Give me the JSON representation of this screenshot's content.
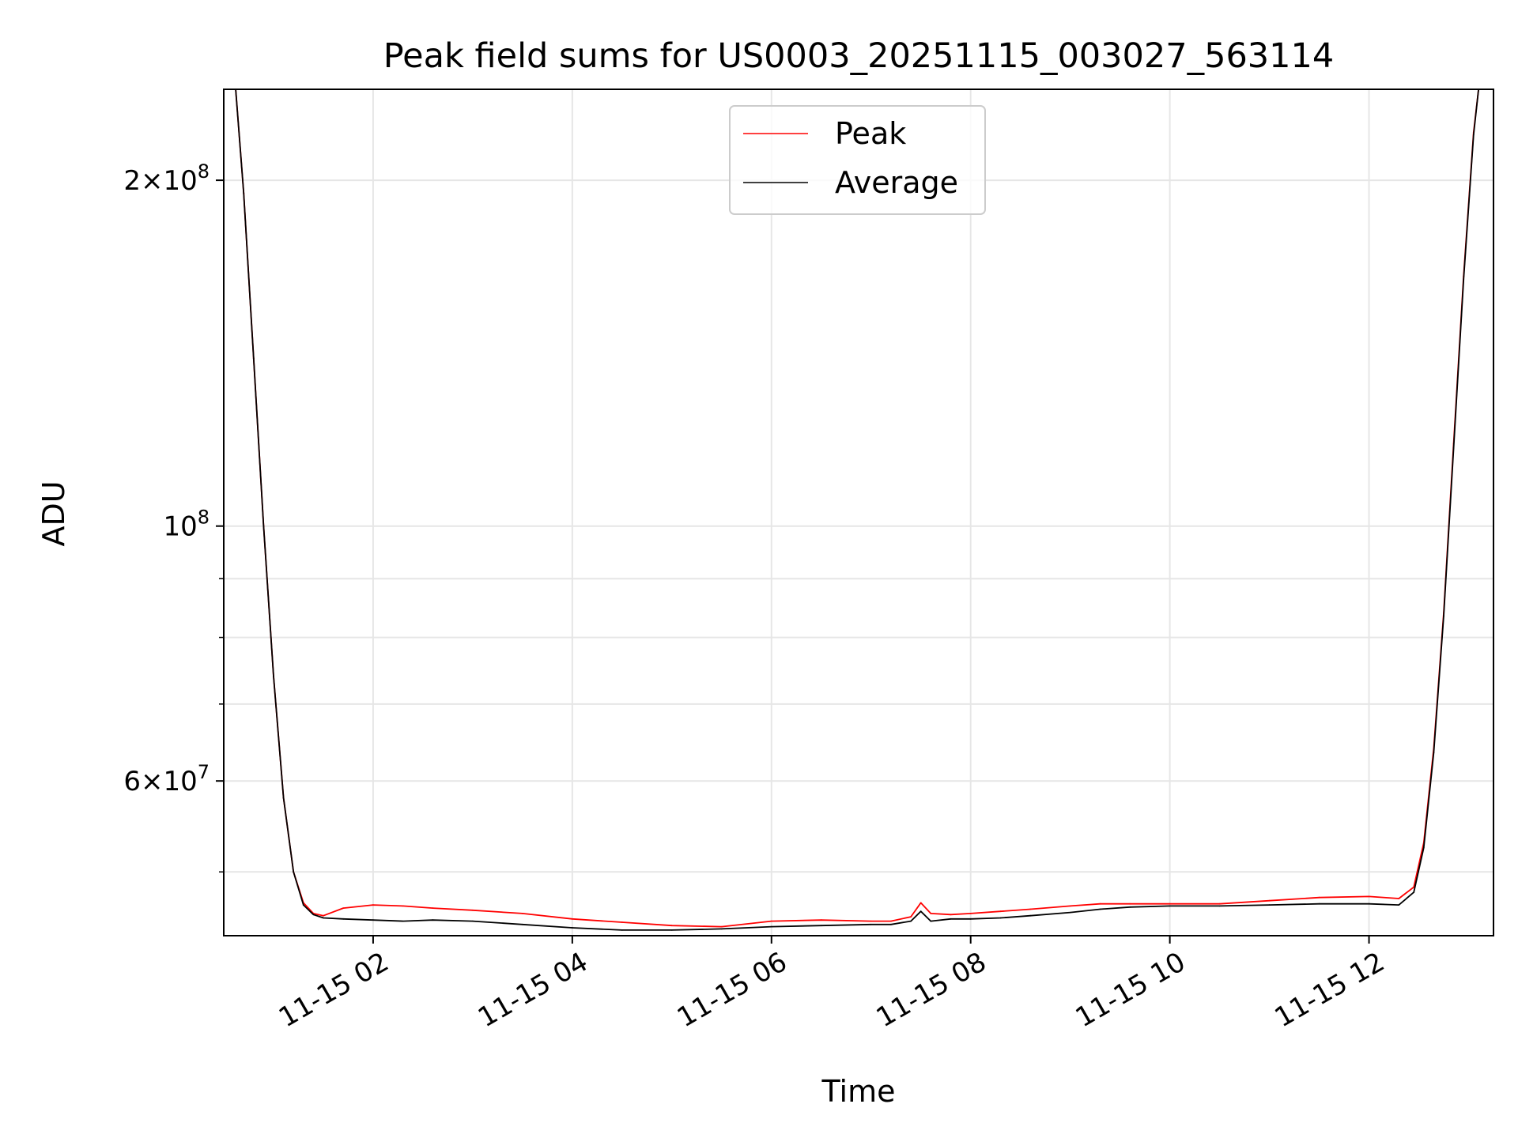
{
  "chart_data": {
    "type": "line",
    "title": "Peak field sums for US0003_20251115_003027_563114",
    "xlabel": "Time",
    "ylabel": "ADU",
    "x_unit": "hours after 2025-11-15 00:00",
    "xlim": [
      0.5,
      13.25
    ],
    "ylim": [
      44000000,
      240000000
    ],
    "yscale": "log",
    "grid": true,
    "legend_location": "upper center",
    "x_ticks": [
      {
        "value": 2,
        "label": "11-15 02"
      },
      {
        "value": 4,
        "label": "11-15 04"
      },
      {
        "value": 6,
        "label": "11-15 06"
      },
      {
        "value": 8,
        "label": "11-15 08"
      },
      {
        "value": 10,
        "label": "11-15 10"
      },
      {
        "value": 12,
        "label": "11-15 12"
      }
    ],
    "y_major_ticks": [
      {
        "value": 100000000,
        "base": "10",
        "exp": "8",
        "mant": ""
      },
      {
        "value": 200000000,
        "base": "10",
        "exp": "8",
        "mant": "2"
      },
      {
        "value": 60000000,
        "base": "10",
        "exp": "7",
        "mant": "6"
      }
    ],
    "y_minor_ticks": [
      50000000,
      70000000,
      80000000,
      90000000
    ],
    "series": [
      {
        "name": "Peak",
        "color": "#ff0000",
        "x": [
          0.62,
          0.7,
          0.8,
          0.9,
          1.0,
          1.1,
          1.2,
          1.3,
          1.4,
          1.5,
          1.7,
          2.0,
          2.3,
          2.6,
          3.0,
          3.5,
          4.0,
          4.5,
          5.0,
          5.5,
          6.0,
          6.5,
          7.0,
          7.2,
          7.4,
          7.5,
          7.6,
          7.8,
          8.0,
          8.3,
          8.6,
          9.0,
          9.3,
          9.6,
          10.0,
          10.5,
          11.0,
          11.5,
          12.0,
          12.3,
          12.45,
          12.55,
          12.65,
          12.75,
          12.85,
          12.95,
          13.05,
          13.1
        ],
        "y": [
          240000000,
          195000000,
          140000000,
          100000000,
          74000000,
          58000000,
          50000000,
          47000000,
          46000000,
          45800000,
          46500000,
          46800000,
          46700000,
          46500000,
          46300000,
          46000000,
          45500000,
          45200000,
          44900000,
          44800000,
          45300000,
          45400000,
          45300000,
          45300000,
          45700000,
          47000000,
          46000000,
          45900000,
          46000000,
          46200000,
          46400000,
          46700000,
          46900000,
          46900000,
          46900000,
          46900000,
          47200000,
          47500000,
          47600000,
          47400000,
          48500000,
          53000000,
          64000000,
          84000000,
          118000000,
          165000000,
          220000000,
          240000000
        ]
      },
      {
        "name": "Average",
        "color": "#000000",
        "x": [
          0.62,
          0.7,
          0.8,
          0.9,
          1.0,
          1.1,
          1.2,
          1.3,
          1.4,
          1.5,
          1.7,
          2.0,
          2.3,
          2.6,
          3.0,
          3.5,
          4.0,
          4.5,
          5.0,
          5.5,
          6.0,
          6.5,
          7.0,
          7.2,
          7.4,
          7.5,
          7.6,
          7.8,
          8.0,
          8.3,
          8.6,
          9.0,
          9.3,
          9.6,
          10.0,
          10.5,
          11.0,
          11.5,
          12.0,
          12.3,
          12.45,
          12.55,
          12.65,
          12.75,
          12.85,
          12.95,
          13.05,
          13.1
        ],
        "y": [
          240000000,
          195000000,
          140000000,
          100000000,
          74000000,
          58000000,
          50000000,
          46800000,
          45900000,
          45600000,
          45500000,
          45400000,
          45300000,
          45400000,
          45300000,
          45000000,
          44700000,
          44500000,
          44500000,
          44600000,
          44800000,
          44900000,
          45000000,
          45000000,
          45300000,
          46200000,
          45300000,
          45500000,
          45500000,
          45600000,
          45800000,
          46100000,
          46400000,
          46600000,
          46700000,
          46700000,
          46800000,
          46900000,
          46900000,
          46800000,
          48000000,
          52500000,
          63500000,
          83500000,
          117000000,
          164000000,
          219000000,
          240000000
        ]
      }
    ]
  }
}
